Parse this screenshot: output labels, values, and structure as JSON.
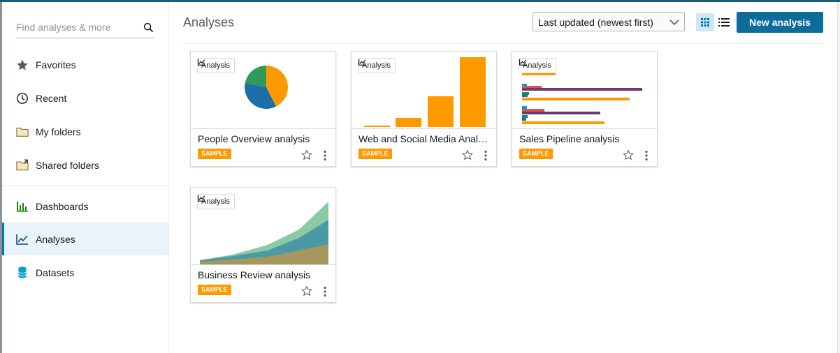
{
  "search": {
    "placeholder": "Find analyses & more"
  },
  "sidebar": {
    "items": [
      {
        "label": "Favorites",
        "icon": "star-icon"
      },
      {
        "label": "Recent",
        "icon": "clock-icon"
      },
      {
        "label": "My folders",
        "icon": "folder-icon"
      },
      {
        "label": "Shared folders",
        "icon": "shared-folder-icon"
      },
      {
        "label": "Dashboards",
        "icon": "dashboard-icon"
      },
      {
        "label": "Analyses",
        "icon": "analysis-icon",
        "active": true
      },
      {
        "label": "Datasets",
        "icon": "database-icon"
      }
    ]
  },
  "header": {
    "title": "Analyses",
    "sort_value": "Last updated (newest first)",
    "new_button": "New analysis"
  },
  "cards": [
    {
      "tag": "Analysis",
      "title": "People Overview analysis",
      "badge": "SAMPLE",
      "thumbnail": "pie"
    },
    {
      "tag": "Analysis",
      "title": "Web and Social Media Analysis",
      "badge": "SAMPLE",
      "thumbnail": "bar"
    },
    {
      "tag": "Analysis",
      "title": "Sales Pipeline analysis",
      "badge": "SAMPLE",
      "thumbnail": "horizontal-bar"
    },
    {
      "tag": "Analysis",
      "title": "Business Review analysis",
      "badge": "SAMPLE",
      "thumbnail": "area"
    }
  ],
  "colors": {
    "accent": "#0e6c9a",
    "sample_badge": "#ff9900",
    "active_nav": "#e9f4fa"
  }
}
